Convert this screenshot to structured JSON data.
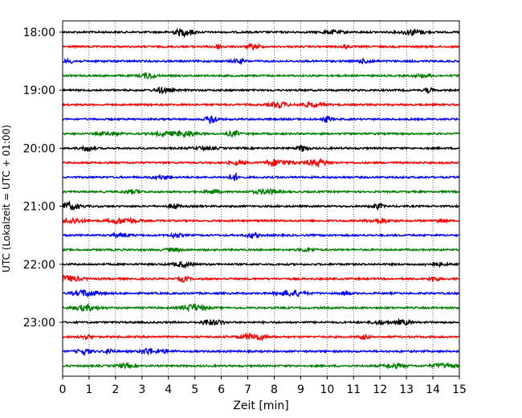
{
  "chart_data": {
    "type": "line",
    "subtype": "seismogram-helicorder",
    "xlabel": "Zeit  [min]",
    "ylabel": "UTC (Lokalzeit = UTC + 01:00)",
    "xlim": [
      0,
      15
    ],
    "x_ticks": [
      "0",
      "1",
      "2",
      "3",
      "4",
      "5",
      "6",
      "7",
      "8",
      "9",
      "10",
      "11",
      "12",
      "13",
      "14",
      "15"
    ],
    "y_ticks": [
      "18:00",
      "19:00",
      "20:00",
      "21:00",
      "22:00",
      "23:00"
    ],
    "trace_count": 24,
    "trace_interval_minutes": 15,
    "trace_colors": [
      "#000000",
      "#ff0000",
      "#0000ff",
      "#008000"
    ],
    "grid": "vertical dotted lines at each minute",
    "legend": "none"
  }
}
